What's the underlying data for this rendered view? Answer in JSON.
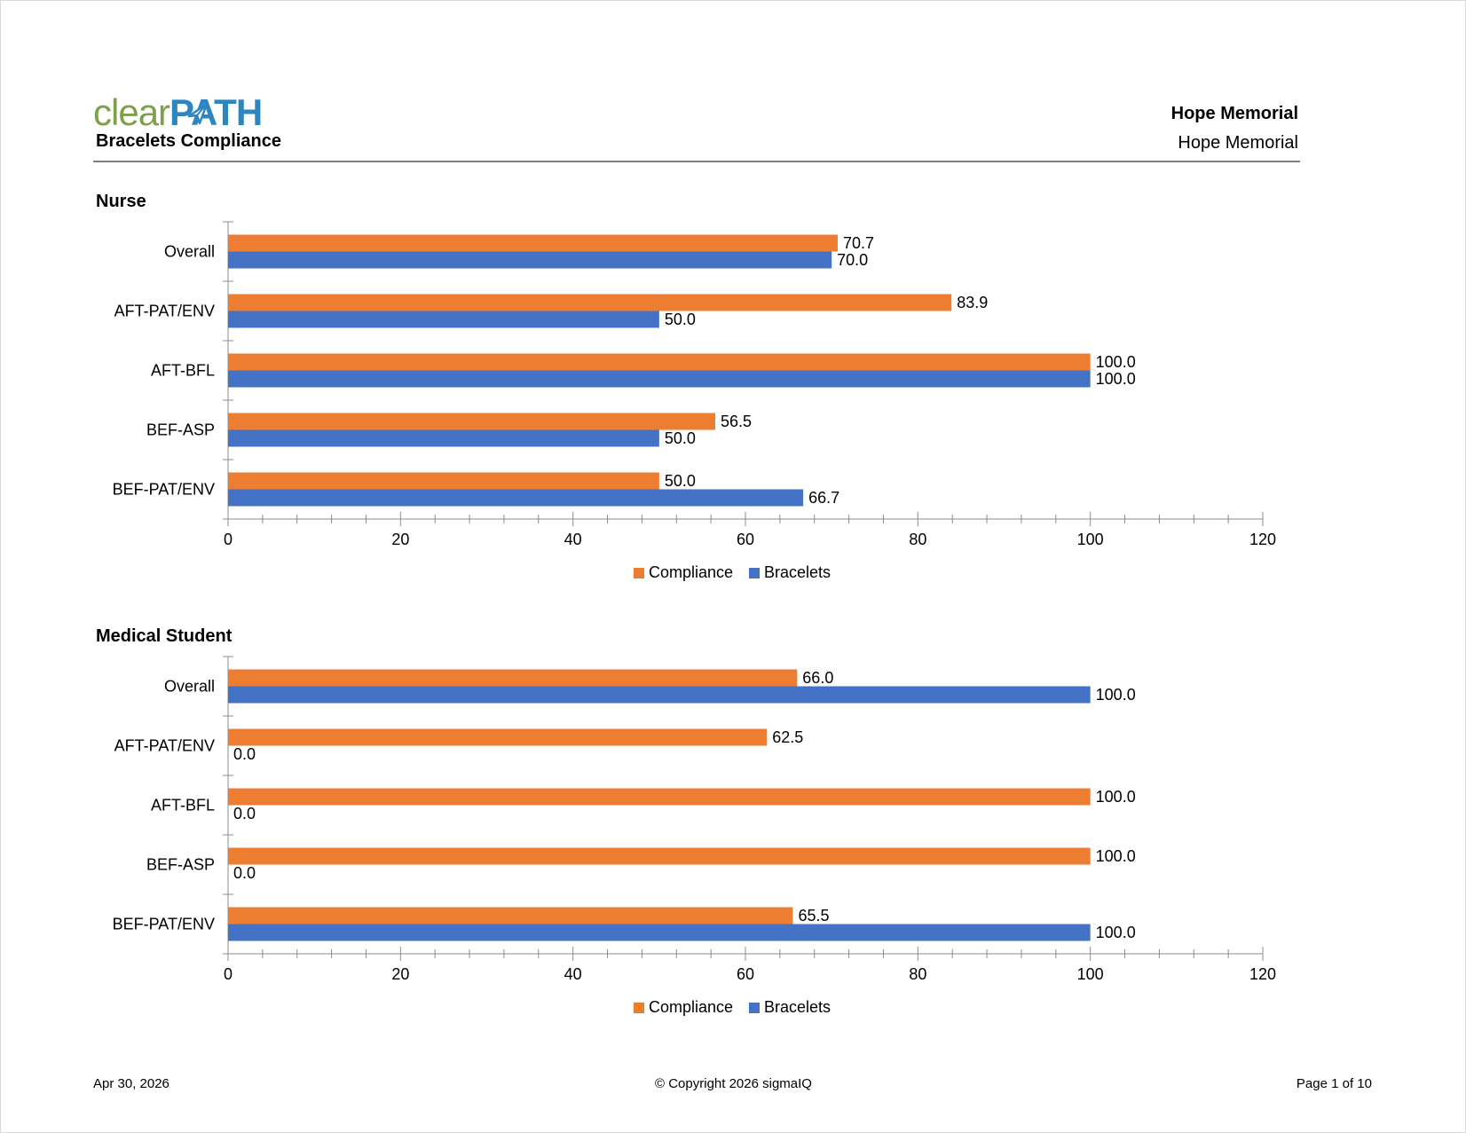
{
  "header": {
    "logo": {
      "part1": "clear",
      "part2": "PATH"
    },
    "report_title": "Bracelets Compliance",
    "hospital_bold": "Hope Memorial",
    "hospital": "Hope Memorial"
  },
  "colors": {
    "compliance": "#ed7d31",
    "bracelets": "#4472c4",
    "axis": "#8c8c8c"
  },
  "chart_data": [
    {
      "type": "bar",
      "orientation": "horizontal",
      "title": "Nurse",
      "categories": [
        "Overall",
        "AFT-PAT/ENV",
        "AFT-BFL",
        "BEF-ASP",
        "BEF-PAT/ENV"
      ],
      "series": [
        {
          "name": "Compliance",
          "color": "#ed7d31",
          "values": [
            70.7,
            83.9,
            100.0,
            56.5,
            50.0
          ]
        },
        {
          "name": "Bracelets",
          "color": "#4472c4",
          "values": [
            70.0,
            50.0,
            100.0,
            50.0,
            66.7
          ]
        }
      ],
      "xlim": [
        0,
        120
      ],
      "xticks": [
        "0",
        "20",
        "40",
        "60",
        "80",
        "100",
        "120"
      ],
      "legend": "bottom-center",
      "grid": false
    },
    {
      "type": "bar",
      "orientation": "horizontal",
      "title": "Medical Student",
      "categories": [
        "Overall",
        "AFT-PAT/ENV",
        "AFT-BFL",
        "BEF-ASP",
        "BEF-PAT/ENV"
      ],
      "series": [
        {
          "name": "Compliance",
          "color": "#ed7d31",
          "values": [
            66.0,
            62.5,
            100.0,
            100.0,
            65.5
          ]
        },
        {
          "name": "Bracelets",
          "color": "#4472c4",
          "values": [
            100.0,
            0.0,
            0.0,
            0.0,
            100.0
          ]
        }
      ],
      "xlim": [
        0,
        120
      ],
      "xticks": [
        "0",
        "20",
        "40",
        "60",
        "80",
        "100",
        "120"
      ],
      "legend": "bottom-center",
      "grid": false
    }
  ],
  "footer": {
    "date": "Apr 30, 2026",
    "copyright": "© Copyright 2026 sigmaIQ",
    "page": "Page 1 of 10"
  }
}
